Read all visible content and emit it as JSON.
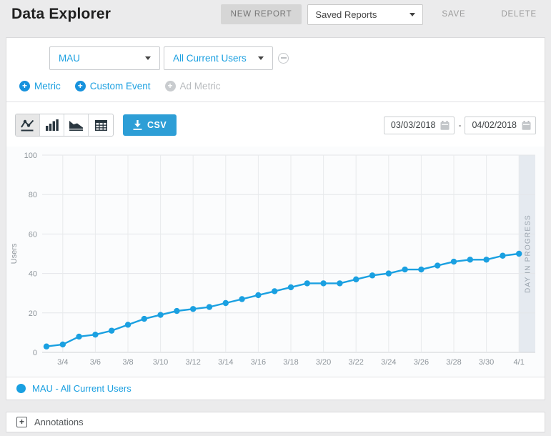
{
  "header": {
    "title": "Data Explorer",
    "new_report_label": "NEW REPORT",
    "saved_reports_value": "Saved Reports",
    "save_label": "SAVE",
    "delete_label": "DELETE"
  },
  "metric_selector": {
    "metric_value": "MAU",
    "segment_value": "All Current Users",
    "add_metric_label": "Metric",
    "add_custom_event_label": "Custom Event",
    "add_ad_metric_label": "Ad Metric",
    "plus_glyph": "+"
  },
  "toolbar": {
    "csv_label": "CSV",
    "date_start": "03/03/2018",
    "date_separator": "-",
    "date_end": "04/02/2018"
  },
  "legend": {
    "series_label": "MAU - All Current Users",
    "dot_color": "#1aa0e1"
  },
  "annotations": {
    "label": "Annotations",
    "expand_glyph": "+"
  },
  "colors": {
    "accent_blue": "#1a9fe0",
    "csv_button": "#2d9ed6",
    "line": "#1aa0e1",
    "in_progress_band": "#e5eaf0",
    "grid": "#e4e6e9"
  },
  "chart_data": {
    "type": "line",
    "title": "",
    "xlabel": "",
    "ylabel": "Users",
    "ylim": [
      0,
      100
    ],
    "yticks": [
      0,
      20,
      40,
      60,
      80,
      100
    ],
    "grid": true,
    "legend_position": "bottom",
    "x": [
      "3/3",
      "3/4",
      "3/5",
      "3/6",
      "3/7",
      "3/8",
      "3/9",
      "3/10",
      "3/11",
      "3/12",
      "3/13",
      "3/14",
      "3/15",
      "3/16",
      "3/17",
      "3/18",
      "3/19",
      "3/20",
      "3/21",
      "3/22",
      "3/23",
      "3/24",
      "3/25",
      "3/26",
      "3/27",
      "3/28",
      "3/29",
      "3/30",
      "3/31",
      "4/1"
    ],
    "x_tick_labels": [
      "3/4",
      "3/6",
      "3/8",
      "3/10",
      "3/12",
      "3/14",
      "3/16",
      "3/18",
      "3/20",
      "3/22",
      "3/24",
      "3/26",
      "3/28",
      "3/30",
      "4/1"
    ],
    "series": [
      {
        "name": "MAU - All Current Users",
        "color": "#1aa0e1",
        "values": [
          3,
          4,
          8,
          9,
          11,
          14,
          17,
          19,
          21,
          22,
          23,
          25,
          27,
          29,
          31,
          33,
          35,
          35,
          35,
          37,
          39,
          40,
          42,
          42,
          44,
          46,
          47,
          47,
          49,
          50
        ]
      }
    ],
    "in_progress": {
      "label": "DAY IN PROGRESS",
      "fill": "#e5eaf0"
    }
  }
}
